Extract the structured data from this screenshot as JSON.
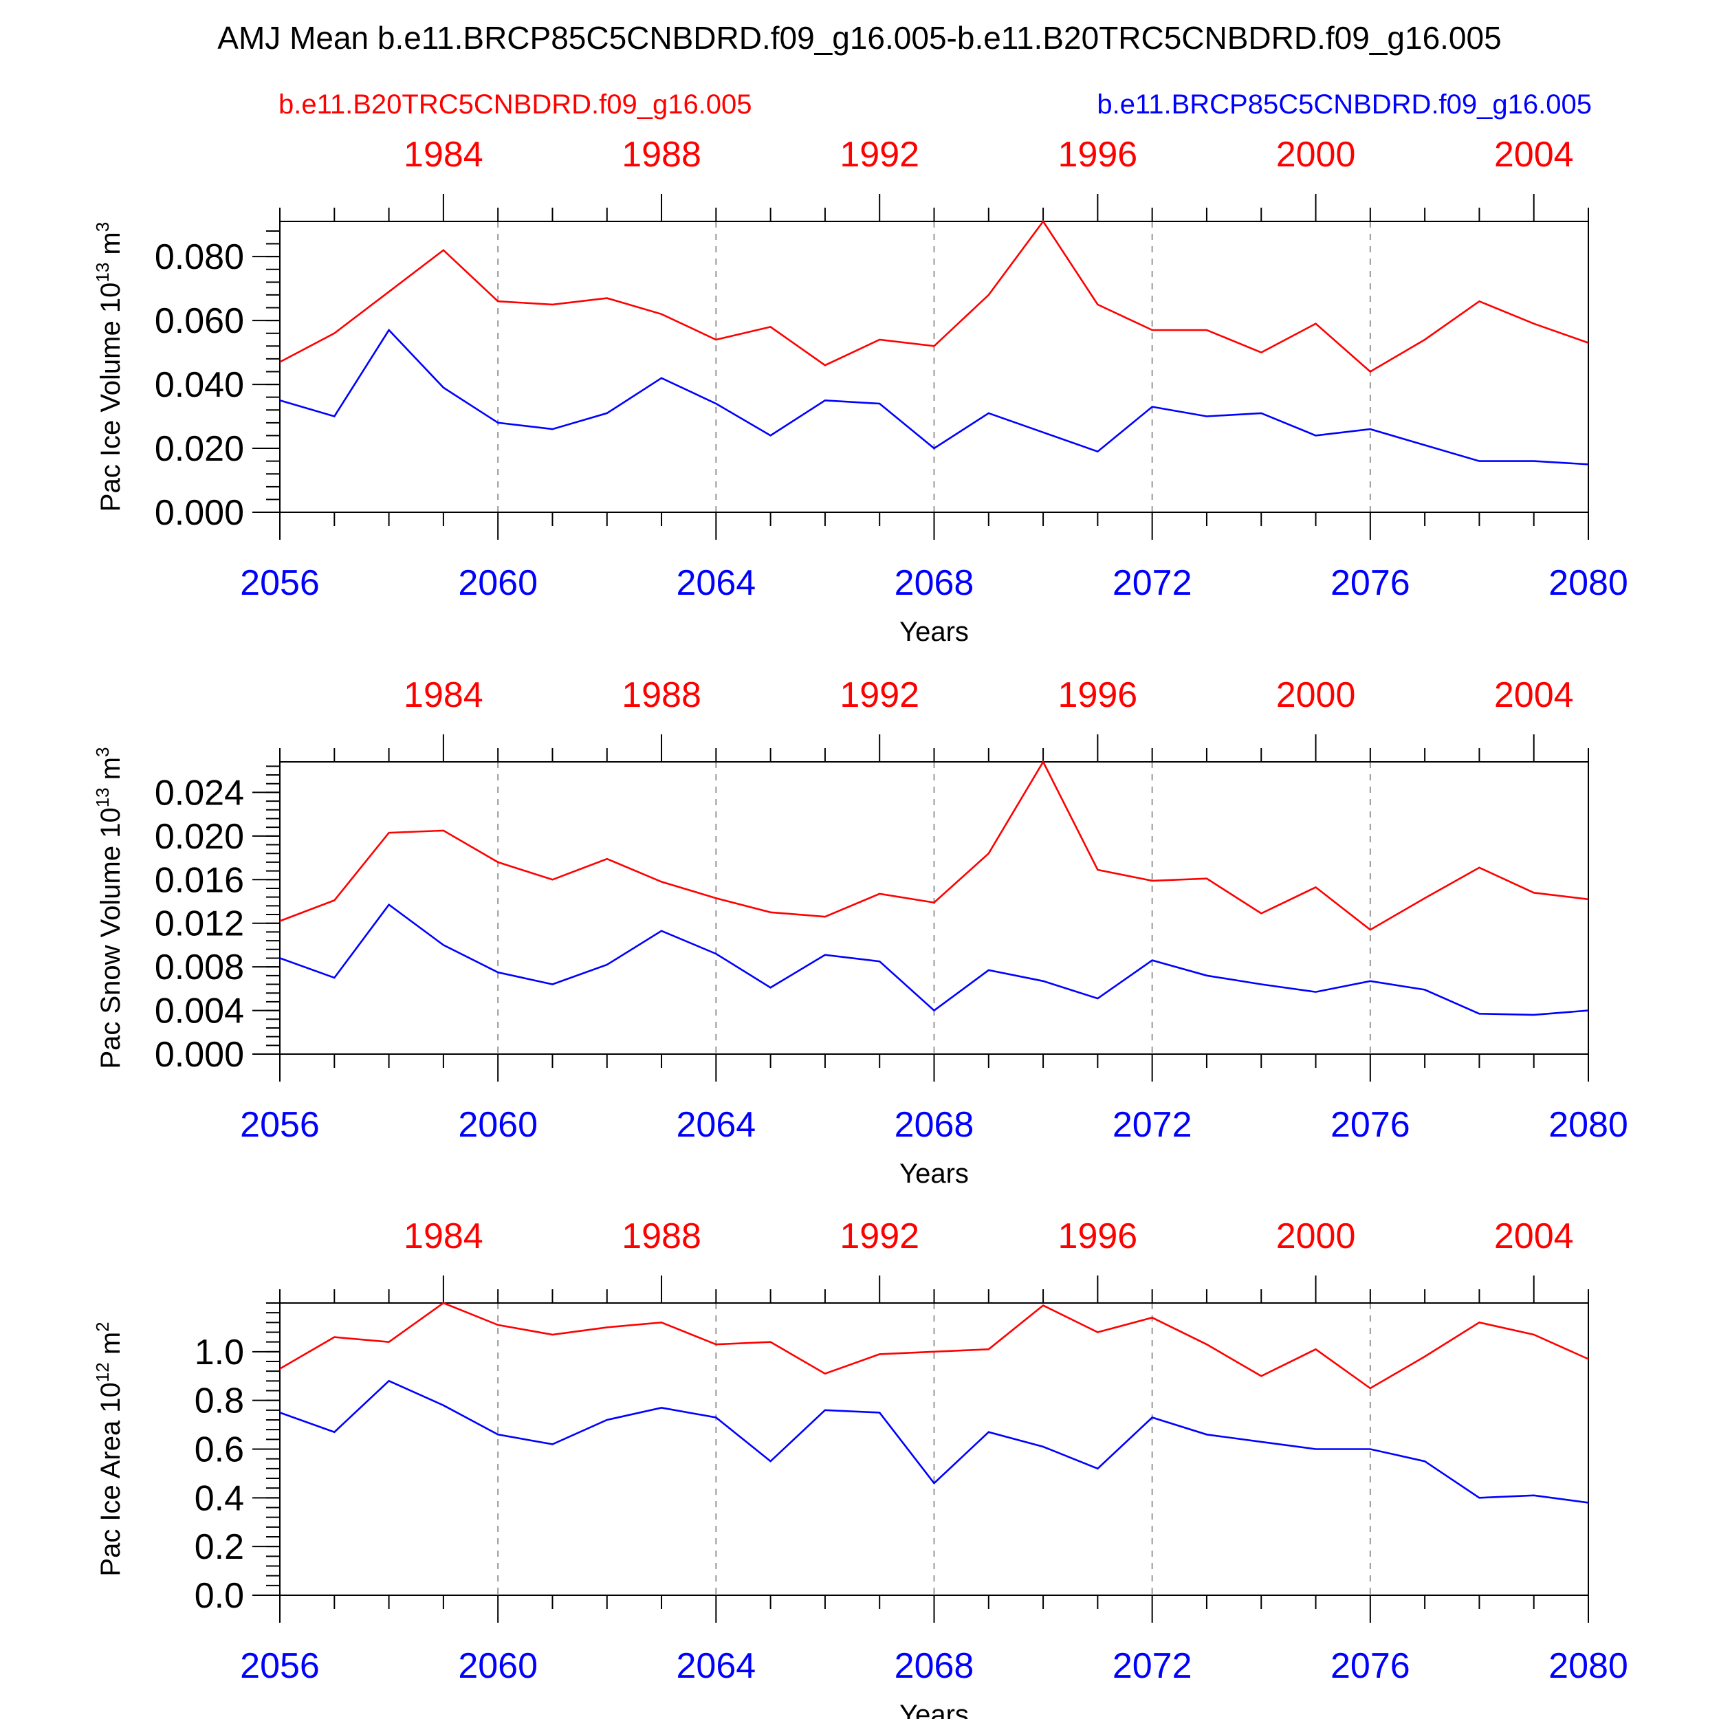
{
  "title": "AMJ Mean b.e11.BRCP85C5CNBDRD.f09_g16.005-b.e11.B20TRC5CNBDRD.f09_g16.005",
  "legend": {
    "left": "b.e11.B20TRC5CNBDRD.f09_g16.005",
    "right": "b.e11.BRCP85C5CNBDRD.f09_g16.005"
  },
  "colors": {
    "red": "#ff0000",
    "blue": "#0000ff",
    "axis": "#000000",
    "grid": "#999999"
  },
  "chart_data": [
    {
      "type": "line",
      "title": "",
      "ylabel": "Pac Ice Volume 10",
      "ylabel_sup": "13",
      "ylabel_unit": "m",
      "ylabel_unit_sup": "3",
      "xlabel": "Years",
      "xlim": [
        2056,
        2080
      ],
      "ylim": [
        0.0,
        0.091
      ],
      "yticks": [
        0.0,
        0.02,
        0.04,
        0.06,
        0.08
      ],
      "ytick_labels": [
        "0.000",
        "0.020",
        "0.040",
        "0.060",
        "0.080"
      ],
      "yminor_step": 0.004,
      "x_bottom_ticks": [
        "2056",
        "2060",
        "2064",
        "2068",
        "2072",
        "2076",
        "2080"
      ],
      "x_top_ticks": [
        "1984",
        "1988",
        "1992",
        "1996",
        "2000",
        "2004"
      ],
      "x_top_offset": 75,
      "grid": "vertical dashed at major x ticks",
      "x": [
        2056,
        2057,
        2058,
        2059,
        2060,
        2061,
        2062,
        2063,
        2064,
        2065,
        2066,
        2067,
        2068,
        2069,
        2070,
        2071,
        2072,
        2073,
        2074,
        2075,
        2076,
        2077,
        2078,
        2079,
        2080
      ],
      "series": [
        {
          "name": "b.e11.B20TRC5CNBDRD.f09_g16.005",
          "color": "red",
          "values": [
            0.047,
            0.056,
            0.069,
            0.082,
            0.066,
            0.065,
            0.067,
            0.062,
            0.054,
            0.058,
            0.046,
            0.054,
            0.052,
            0.068,
            0.091,
            0.065,
            0.057,
            0.057,
            0.05,
            0.059,
            0.044,
            0.054,
            0.066,
            0.059,
            0.053
          ]
        },
        {
          "name": "b.e11.BRCP85C5CNBDRD.f09_g16.005",
          "color": "blue",
          "values": [
            0.035,
            0.03,
            0.057,
            0.039,
            0.028,
            0.026,
            0.031,
            0.042,
            0.034,
            0.024,
            0.035,
            0.034,
            0.02,
            0.031,
            0.025,
            0.019,
            0.033,
            0.03,
            0.031,
            0.024,
            0.026,
            0.021,
            0.016,
            0.016,
            0.015
          ]
        }
      ]
    },
    {
      "type": "line",
      "title": "",
      "ylabel": "Pac Snow Volume 10",
      "ylabel_sup": "13",
      "ylabel_unit": "m",
      "ylabel_unit_sup": "3",
      "xlabel": "Years",
      "xlim": [
        2056,
        2080
      ],
      "ylim": [
        0.0,
        0.0268
      ],
      "yticks": [
        0.0,
        0.004,
        0.008,
        0.012,
        0.016,
        0.02,
        0.024
      ],
      "ytick_labels": [
        "0.000",
        "0.004",
        "0.008",
        "0.012",
        "0.016",
        "0.020",
        "0.024"
      ],
      "yminor_step": 0.0008,
      "x_bottom_ticks": [
        "2056",
        "2060",
        "2064",
        "2068",
        "2072",
        "2076",
        "2080"
      ],
      "x_top_ticks": [
        "1984",
        "1988",
        "1992",
        "1996",
        "2000",
        "2004"
      ],
      "x_top_offset": 75,
      "grid": "vertical dashed at major x ticks",
      "x": [
        2056,
        2057,
        2058,
        2059,
        2060,
        2061,
        2062,
        2063,
        2064,
        2065,
        2066,
        2067,
        2068,
        2069,
        2070,
        2071,
        2072,
        2073,
        2074,
        2075,
        2076,
        2077,
        2078,
        2079,
        2080
      ],
      "series": [
        {
          "name": "b.e11.B20TRC5CNBDRD.f09_g16.005",
          "color": "red",
          "values": [
            0.0122,
            0.0141,
            0.0203,
            0.0205,
            0.0176,
            0.016,
            0.0179,
            0.0158,
            0.0143,
            0.013,
            0.0126,
            0.0147,
            0.0139,
            0.0184,
            0.0268,
            0.0169,
            0.0159,
            0.0161,
            0.0129,
            0.0153,
            0.0114,
            0.0143,
            0.0171,
            0.0148,
            0.0142
          ]
        },
        {
          "name": "b.e11.BRCP85C5CNBDRD.f09_g16.005",
          "color": "blue",
          "values": [
            0.0088,
            0.007,
            0.0137,
            0.01,
            0.0075,
            0.0064,
            0.0082,
            0.0113,
            0.0092,
            0.0061,
            0.0091,
            0.0085,
            0.004,
            0.0077,
            0.0067,
            0.0051,
            0.0086,
            0.0072,
            0.0064,
            0.0057,
            0.0067,
            0.0059,
            0.0037,
            0.0036,
            0.004
          ]
        }
      ]
    },
    {
      "type": "line",
      "title": "",
      "ylabel": "Pac Ice Area 10",
      "ylabel_sup": "12",
      "ylabel_unit": "m",
      "ylabel_unit_sup": "2",
      "xlabel": "Years",
      "xlim": [
        2056,
        2080
      ],
      "ylim": [
        0.0,
        1.2
      ],
      "yticks": [
        0.0,
        0.2,
        0.4,
        0.6,
        0.8,
        1.0
      ],
      "ytick_labels": [
        "0.0",
        "0.2",
        "0.4",
        "0.6",
        "0.8",
        "1.0"
      ],
      "yminor_step": 0.04,
      "x_bottom_ticks": [
        "2056",
        "2060",
        "2064",
        "2068",
        "2072",
        "2076",
        "2080"
      ],
      "x_top_ticks": [
        "1984",
        "1988",
        "1992",
        "1996",
        "2000",
        "2004"
      ],
      "x_top_offset": 75,
      "grid": "vertical dashed at major x ticks",
      "x": [
        2056,
        2057,
        2058,
        2059,
        2060,
        2061,
        2062,
        2063,
        2064,
        2065,
        2066,
        2067,
        2068,
        2069,
        2070,
        2071,
        2072,
        2073,
        2074,
        2075,
        2076,
        2077,
        2078,
        2079,
        2080
      ],
      "series": [
        {
          "name": "b.e11.B20TRC5CNBDRD.f09_g16.005",
          "color": "red",
          "values": [
            0.93,
            1.06,
            1.04,
            1.2,
            1.11,
            1.07,
            1.1,
            1.12,
            1.03,
            1.04,
            0.91,
            0.99,
            1.0,
            1.01,
            1.19,
            1.08,
            1.14,
            1.03,
            0.9,
            1.01,
            0.85,
            0.98,
            1.12,
            1.07,
            0.97
          ]
        },
        {
          "name": "b.e11.BRCP85C5CNBDRD.f09_g16.005",
          "color": "blue",
          "values": [
            0.75,
            0.67,
            0.88,
            0.78,
            0.66,
            0.62,
            0.72,
            0.77,
            0.73,
            0.55,
            0.76,
            0.75,
            0.46,
            0.67,
            0.61,
            0.52,
            0.73,
            0.66,
            0.63,
            0.6,
            0.6,
            0.55,
            0.4,
            0.41,
            0.38
          ]
        }
      ]
    }
  ]
}
